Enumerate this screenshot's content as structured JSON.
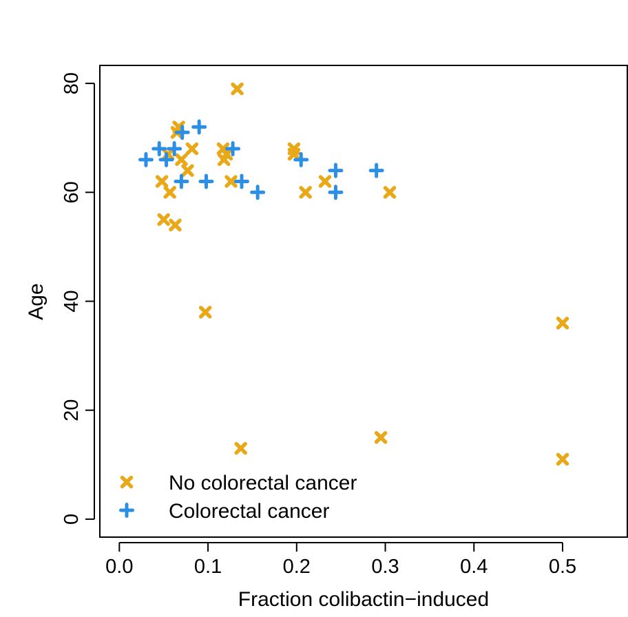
{
  "chart_data": {
    "type": "scatter",
    "title": "",
    "xlabel": "Fraction colibactin−induced",
    "ylabel": "Age",
    "xlim": [
      -0.022,
      0.573
    ],
    "ylim": [
      -3.3,
      83.3
    ],
    "xticks": [
      0.0,
      0.1,
      0.2,
      0.3,
      0.4,
      0.5
    ],
    "xtick_labels": [
      "0.0",
      "0.1",
      "0.2",
      "0.3",
      "0.4",
      "0.5"
    ],
    "yticks": [
      0,
      20,
      40,
      60,
      80
    ],
    "ytick_labels": [
      "0",
      "20",
      "40",
      "60",
      "80"
    ],
    "grid": false,
    "legend_position": "bottom-left",
    "series": [
      {
        "name": "No colorectal cancer",
        "marker": "x",
        "color": "#E8A817",
        "points": [
          [
            0.133,
            79
          ],
          [
            0.067,
            72
          ],
          [
            0.065,
            71
          ],
          [
            0.055,
            67
          ],
          [
            0.07,
            66
          ],
          [
            0.082,
            68
          ],
          [
            0.077,
            64
          ],
          [
            0.048,
            62
          ],
          [
            0.057,
            60
          ],
          [
            0.117,
            68
          ],
          [
            0.118,
            66
          ],
          [
            0.121,
            67
          ],
          [
            0.126,
            62
          ],
          [
            0.197,
            68
          ],
          [
            0.197,
            67
          ],
          [
            0.232,
            62
          ],
          [
            0.21,
            60
          ],
          [
            0.305,
            60
          ],
          [
            0.05,
            55
          ],
          [
            0.063,
            54
          ],
          [
            0.097,
            38
          ],
          [
            0.5,
            36
          ],
          [
            0.137,
            13
          ],
          [
            0.295,
            15
          ],
          [
            0.5,
            11
          ]
        ]
      },
      {
        "name": "Colorectal cancer",
        "marker": "+",
        "color": "#2B8FE6",
        "points": [
          [
            0.09,
            72
          ],
          [
            0.071,
            71
          ],
          [
            0.03,
            66
          ],
          [
            0.045,
            68
          ],
          [
            0.053,
            66
          ],
          [
            0.062,
            68
          ],
          [
            0.07,
            62
          ],
          [
            0.098,
            62
          ],
          [
            0.128,
            68
          ],
          [
            0.138,
            62
          ],
          [
            0.156,
            60
          ],
          [
            0.205,
            66
          ],
          [
            0.244,
            64
          ],
          [
            0.244,
            60
          ],
          [
            0.29,
            64
          ]
        ]
      }
    ]
  }
}
